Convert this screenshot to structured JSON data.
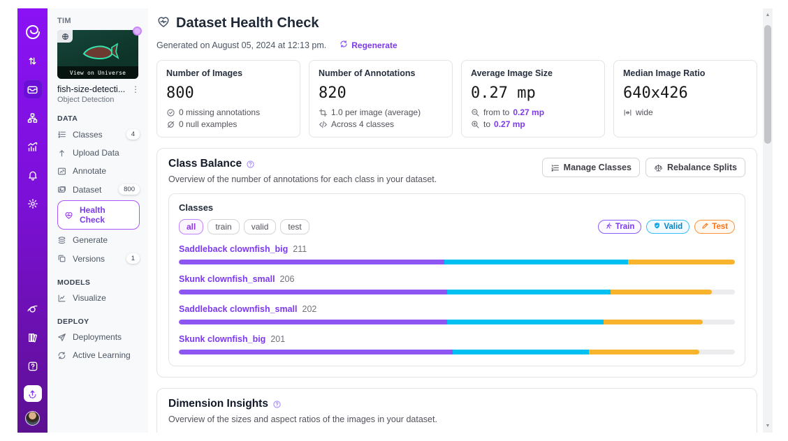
{
  "colors": {
    "accent": "#7c3aed",
    "train": "#8d55f1",
    "valid": "#00c0f2",
    "test": "#f7b32b",
    "rail_top": "#8a12f5",
    "rail_bottom": "#5c1191"
  },
  "rail": {
    "items": [
      "roboflow-logo",
      "sort-arrows-icon",
      "projects-icon",
      "workflows-icon",
      "analytics-icon",
      "notifications-icon",
      "settings-icon",
      "universe-icon",
      "docs-icon",
      "help-icon",
      "upload-icon",
      "avatar"
    ],
    "active_item": "projects-icon"
  },
  "sidebar": {
    "workspace": "TIM",
    "thumbnail_label": "View on Universe",
    "project_name": "fish-size-detecti...",
    "project_type": "Object Detection",
    "sections": [
      {
        "label": "DATA",
        "items": [
          {
            "label": "Classes",
            "badge": "4",
            "icon": "ordered-list-icon"
          },
          {
            "label": "Upload Data",
            "icon": "upload-arrow-icon"
          },
          {
            "label": "Annotate",
            "icon": "annotate-image-icon"
          },
          {
            "label": "Dataset",
            "badge": "800",
            "icon": "image-stack-icon"
          },
          {
            "label": "Health Check",
            "icon": "heart-pulse-icon",
            "active": true
          },
          {
            "label": "Generate",
            "icon": "layers-icon"
          },
          {
            "label": "Versions",
            "badge": "1",
            "icon": "versions-icon"
          }
        ]
      },
      {
        "label": "MODELS",
        "items": [
          {
            "label": "Visualize",
            "icon": "chart-axis-icon"
          }
        ]
      },
      {
        "label": "DEPLOY",
        "items": [
          {
            "label": "Deployments",
            "icon": "paper-plane-icon"
          },
          {
            "label": "Active Learning",
            "icon": "cycle-icon"
          }
        ]
      }
    ]
  },
  "header": {
    "title": "Dataset Health Check",
    "generated": "Generated on August 05, 2024 at 12:13 pm.",
    "regenerate_label": "Regenerate"
  },
  "stats": [
    {
      "title": "Number of Images",
      "value": "800",
      "line1": "0 missing annotations",
      "line1_icon": "check-circle-icon",
      "line2": "0 null examples",
      "line2_icon": "null-slash-icon"
    },
    {
      "title": "Number of Annotations",
      "value": "820",
      "line1": "1.0 per image (average)",
      "line1_icon": "crop-icon",
      "line2": "Across 4 classes",
      "line2_icon": "code-icon"
    },
    {
      "title": "Average Image Size",
      "value": "0.27 mp",
      "line1": "from to",
      "line1_em": "0.27 mp",
      "line1_icon": "zoom-out-icon",
      "line2": "to",
      "line2_em": "0.27 mp",
      "line2_icon": "zoom-in-icon"
    },
    {
      "title": "Median Image Ratio",
      "value": "640x426",
      "line1": "wide",
      "line1_icon": "width-arrows-icon"
    }
  ],
  "class_balance": {
    "title": "Class Balance",
    "subtitle": "Overview of the number of annotations for each class in your dataset.",
    "manage_btn": "Manage Classes",
    "rebalance_btn": "Rebalance Splits",
    "panel_title": "Classes",
    "filters": {
      "all": "all",
      "train": "train",
      "valid": "valid",
      "test": "test",
      "active": "all"
    },
    "legend": [
      {
        "label": "Train",
        "icon": "runner-icon"
      },
      {
        "label": "Valid",
        "icon": "shield-check-icon"
      },
      {
        "label": "Test",
        "icon": "pencil-icon"
      }
    ],
    "rows": [
      {
        "name": "Saddleback clownfish_big",
        "count": "211",
        "train": 47.8,
        "valid": 33.0,
        "test": 19.2
      },
      {
        "name": "Skunk clownfish_small",
        "count": "206",
        "train": 48.2,
        "valid": 29.4,
        "test": 18.3
      },
      {
        "name": "Saddleback clownfish_small",
        "count": "202",
        "train": 48.3,
        "valid": 28.1,
        "test": 17.8
      },
      {
        "name": "Skunk clownfish_big",
        "count": "201",
        "train": 49.3,
        "valid": 24.5,
        "test": 19.8
      }
    ]
  },
  "dimension_insights": {
    "title": "Dimension Insights",
    "subtitle": "Overview of the sizes and aspect ratios of the images in your dataset."
  }
}
